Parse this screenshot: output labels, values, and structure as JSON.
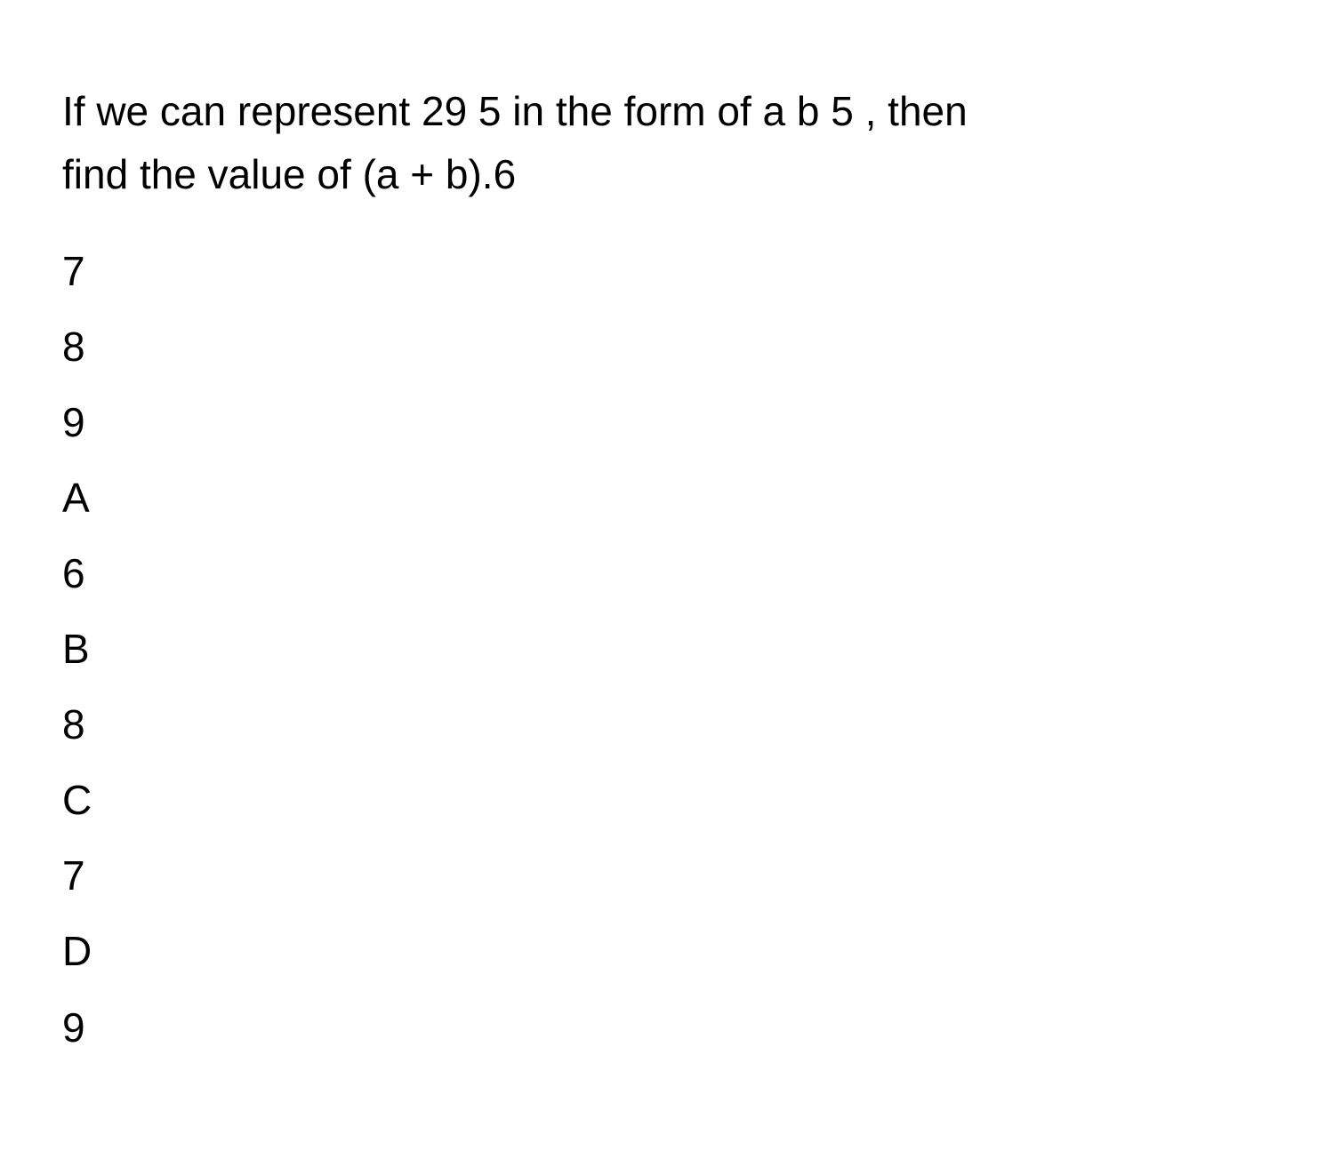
{
  "question": {
    "line1": "If we can represent 29 5  in the form of a b 5 , then",
    "line2": "find the value of (a + b).6"
  },
  "items": [
    "7",
    "8",
    "9",
    "A",
    "6",
    "B",
    "8",
    "C",
    "7",
    "D",
    "9"
  ],
  "styling": {
    "background_color": "#ffffff",
    "text_color": "#000000",
    "font_size": 46,
    "question_line_height": 1.55,
    "item_line_height": 1.85
  }
}
